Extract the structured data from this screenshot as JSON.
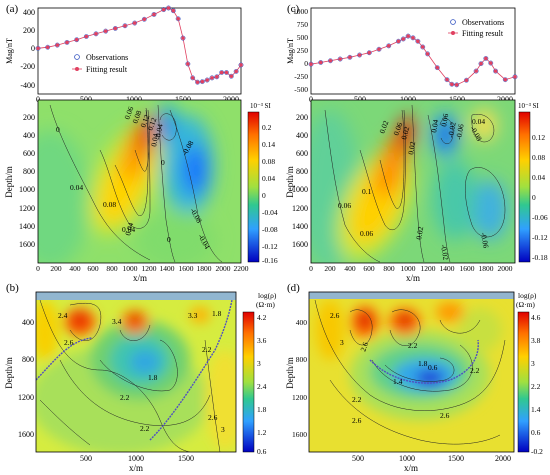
{
  "panels": {
    "a": {
      "label": "(a)",
      "ylabel": "Mag/nT",
      "yticks": [
        "400",
        "200",
        "0",
        "-200",
        "-400"
      ],
      "xticks": [
        "0",
        "500",
        "1000",
        "1500",
        "2000"
      ]
    },
    "c": {
      "label": "(c)",
      "ylabel": "Mag/nT",
      "yticks": [
        "1000",
        "750",
        "500",
        "250",
        "0",
        "-250",
        "-500"
      ],
      "xticks": [
        "0",
        "500",
        "1000",
        "1500",
        "2000"
      ]
    },
    "b": {
      "label": "(b)"
    },
    "d": {
      "label": "(d)"
    }
  },
  "legend": {
    "observations": "Observations",
    "fitting": "Fitting result"
  },
  "susc": {
    "ylabel": "Depth/m",
    "xlabel": "x/m",
    "yticks": [
      "200",
      "400",
      "600",
      "800",
      "1000",
      "1200",
      "1400",
      "1600"
    ],
    "xticks": [
      "0",
      "200",
      "400",
      "600",
      "800",
      "1000",
      "1200",
      "1400",
      "1600",
      "1800",
      "2000",
      "2200"
    ],
    "xticks_c": [
      "0",
      "200",
      "400",
      "600",
      "800",
      "1000",
      "1200",
      "1400",
      "1600",
      "1800",
      "2000"
    ],
    "cb_title": "10⁻³ SI",
    "cb_left": [
      "0.2",
      "0.14",
      "0.08",
      "0.04",
      "0",
      "-0.04",
      "-0.08",
      "-0.12",
      "-0.16"
    ],
    "cb_right": [
      "0.12",
      "0.08",
      "0.04",
      "0",
      "-0.06",
      "-0.12",
      "-0.18"
    ],
    "contours_left": [
      "0",
      "0.04",
      "0.08",
      "0.04",
      "0.06",
      "0.08",
      "0.12",
      "0.12",
      "0.04",
      "0",
      "-0.04",
      "-0.08",
      "-0.08",
      "0.04",
      "0",
      "-0.04"
    ],
    "contours_right": [
      "0.02",
      "0.06",
      "0.1",
      "0.06",
      "0.06",
      "0.02",
      "0.02",
      "0.04",
      "0.06",
      "-0.02",
      "-0.06",
      "0.04",
      "-0.08",
      "0.02",
      "-0.02",
      "-0.06"
    ]
  },
  "resist": {
    "ylabel": "Depth/m",
    "xlabel": "x/m",
    "yticks": [
      "400",
      "800",
      "1200",
      "1600"
    ],
    "xticks": [
      "500",
      "1000",
      "1500"
    ],
    "xticks_d": [
      "500",
      "1000",
      "1500",
      "2000"
    ],
    "cb_title": "log(ρ)",
    "cb_unit": "(Ω·m)",
    "cb_left": [
      "4.2",
      "3.6",
      "3",
      "2.4",
      "1.8",
      "1.2",
      "0.6"
    ],
    "cb_right": [
      "4.6",
      "3.8",
      "3",
      "2.2",
      "1.4",
      "0.6",
      "-0.2"
    ],
    "contours_left": [
      "2.4",
      "3.4",
      "3.3",
      "1.8",
      "2.6",
      "2.2",
      "1.8",
      "2.2",
      "2.2",
      "2.6",
      "3"
    ],
    "contours_right": [
      "2.6",
      "3",
      "2.6",
      "2.2",
      "1.8",
      "1.4",
      "0.6",
      "2.2",
      "2.2",
      "2.6",
      "2.6"
    ]
  },
  "chart_data": [
    {
      "type": "scatter",
      "panel": "(a)",
      "xlim": [
        0,
        2100
      ],
      "ylim": [
        -400,
        400
      ],
      "ylabel": "Mag/nT",
      "series": [
        {
          "name": "Observations",
          "x": [
            0,
            100,
            200,
            300,
            400,
            500,
            600,
            700,
            800,
            900,
            1000,
            1100,
            1200,
            1300,
            1350,
            1400,
            1450,
            1500,
            1550,
            1600,
            1650,
            1700,
            1750,
            1800,
            1850,
            1900,
            1950,
            2000,
            2050,
            2100
          ],
          "y": [
            25,
            35,
            55,
            80,
            105,
            135,
            160,
            185,
            210,
            235,
            260,
            295,
            340,
            385,
            400,
            375,
            300,
            120,
            -120,
            -250,
            -290,
            -285,
            -270,
            -250,
            -240,
            -200,
            -200,
            -235,
            -190,
            -130
          ]
        },
        {
          "name": "Fitting result",
          "x": [
            0,
            100,
            200,
            300,
            400,
            500,
            600,
            700,
            800,
            900,
            1000,
            1100,
            1200,
            1300,
            1350,
            1400,
            1450,
            1500,
            1550,
            1600,
            1650,
            1700,
            1750,
            1800,
            1850,
            1900,
            1950,
            2000,
            2050,
            2100
          ],
          "y": [
            25,
            35,
            55,
            80,
            105,
            135,
            160,
            185,
            210,
            235,
            260,
            295,
            340,
            385,
            400,
            375,
            300,
            120,
            -120,
            -250,
            -290,
            -285,
            -270,
            -250,
            -240,
            -200,
            -200,
            -235,
            -190,
            -130
          ]
        }
      ]
    },
    {
      "type": "scatter",
      "panel": "(c)",
      "xlim": [
        0,
        2100
      ],
      "ylim": [
        -500,
        1000
      ],
      "ylabel": "Mag/nT",
      "series": [
        {
          "name": "Observations",
          "x": [
            0,
            100,
            200,
            300,
            400,
            500,
            600,
            700,
            800,
            900,
            950,
            1000,
            1050,
            1100,
            1150,
            1200,
            1300,
            1400,
            1450,
            1500,
            1600,
            1700,
            1750,
            1800,
            1850,
            1900,
            2000,
            2100
          ],
          "y": [
            20,
            50,
            80,
            110,
            140,
            180,
            220,
            280,
            340,
            420,
            460,
            510,
            480,
            420,
            320,
            200,
            -40,
            -250,
            -330,
            -340,
            -260,
            -100,
            30,
            120,
            40,
            -100,
            -250,
            -200
          ]
        },
        {
          "name": "Fitting result",
          "x": [
            0,
            100,
            200,
            300,
            400,
            500,
            600,
            700,
            800,
            900,
            950,
            1000,
            1050,
            1100,
            1150,
            1200,
            1300,
            1400,
            1450,
            1500,
            1600,
            1700,
            1750,
            1800,
            1850,
            1900,
            2000,
            2100
          ],
          "y": [
            20,
            50,
            80,
            110,
            140,
            180,
            220,
            280,
            340,
            420,
            460,
            510,
            480,
            420,
            320,
            200,
            -40,
            -250,
            -330,
            -340,
            -260,
            -100,
            30,
            120,
            40,
            -100,
            -250,
            -200
          ]
        }
      ]
    },
    {
      "type": "heatmap",
      "panel": "(a) susceptibility",
      "xlabel": "x/m",
      "ylabel": "Depth/m",
      "xlim": [
        0,
        2200
      ],
      "ylim": [
        1800,
        0
      ],
      "colorbar": {
        "title": "10⁻³ SI",
        "range": [
          -0.16,
          0.2
        ]
      },
      "anomalies": [
        {
          "x": 1250,
          "y": 400,
          "v": 0.2
        },
        {
          "x": 1100,
          "y": 800,
          "v": 0.1
        },
        {
          "x": 1600,
          "y": 350,
          "v": -0.16
        },
        {
          "x": 1950,
          "y": 750,
          "v": -0.12
        }
      ]
    },
    {
      "type": "heatmap",
      "panel": "(c) susceptibility",
      "xlabel": "x/m",
      "ylabel": "Depth/m",
      "xlim": [
        0,
        2100
      ],
      "ylim": [
        1800,
        0
      ],
      "colorbar": {
        "title": "10⁻³ SI",
        "range": [
          -0.18,
          0.14
        ]
      },
      "anomalies": [
        {
          "x": 950,
          "y": 400,
          "v": 0.14
        },
        {
          "x": 750,
          "y": 900,
          "v": 0.08
        },
        {
          "x": 1400,
          "y": 380,
          "v": -0.18
        },
        {
          "x": 1900,
          "y": 250,
          "v": 0.06
        },
        {
          "x": 1900,
          "y": 1200,
          "v": -0.1
        }
      ]
    },
    {
      "type": "heatmap",
      "panel": "(b) resistivity",
      "xlabel": "x/m",
      "ylabel": "Depth/m",
      "xlim": [
        0,
        1900
      ],
      "ylim": [
        1800,
        0
      ],
      "colorbar": {
        "title": "log(ρ) (Ω·m)",
        "range": [
          0.6,
          4.2
        ]
      },
      "anomalies": [
        {
          "x": 450,
          "y": 350,
          "v": 4.0
        },
        {
          "x": 1150,
          "y": 350,
          "v": 3.8
        },
        {
          "x": 1100,
          "y": 900,
          "v": 1.8
        },
        {
          "x": 900,
          "y": 1200,
          "v": 2.2
        }
      ]
    },
    {
      "type": "heatmap",
      "panel": "(d) resistivity",
      "xlabel": "x/m",
      "ylabel": "Depth/m",
      "xlim": [
        0,
        2100
      ],
      "ylim": [
        1800,
        0
      ],
      "colorbar": {
        "title": "log(ρ) (Ω·m)",
        "range": [
          -0.2,
          4.6
        ]
      },
      "anomalies": [
        {
          "x": 550,
          "y": 400,
          "v": 4.4
        },
        {
          "x": 1100,
          "y": 400,
          "v": 4.2
        },
        {
          "x": 1150,
          "y": 900,
          "v": 0.6
        },
        {
          "x": 1000,
          "y": 1300,
          "v": 2.6
        }
      ]
    }
  ]
}
